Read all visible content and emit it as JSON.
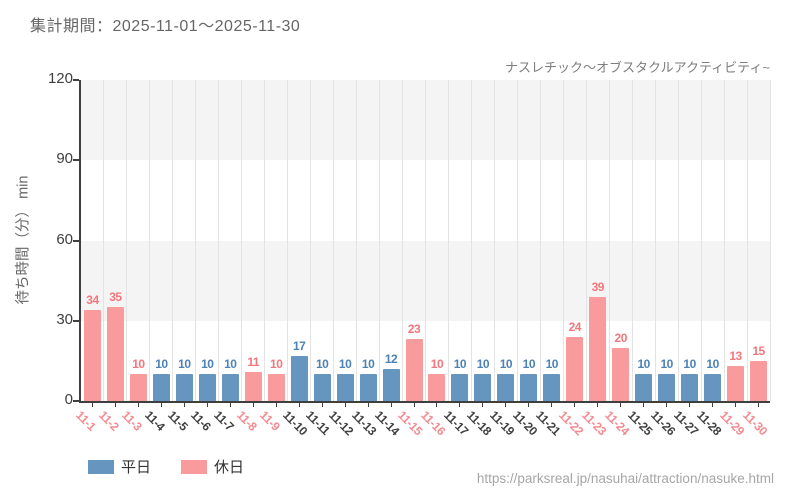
{
  "header": {
    "period_label": "集計期間：2025-11-01～2025-11-30"
  },
  "footer": {
    "source_url": "https://parksreal.jp/nasuhai/attraction/nasuke.html"
  },
  "legend": {
    "weekday_label": "平日",
    "holiday_label": "休日"
  },
  "chart_data": {
    "type": "bar",
    "title": "ナスレチック～オブスタクルアクティビティ~",
    "ylabel": "待ち時間（分） min",
    "ylim": [
      0,
      120
    ],
    "yticks": [
      0,
      30,
      60,
      90,
      120
    ],
    "grid": "vertical-gridlines-and-horizontal-bands",
    "legend_position": "bottom-left",
    "series_styles": {
      "weekday": {
        "name": "平日",
        "bar_color": "#6695bf",
        "value_label_color": "#4d82b4",
        "tick_label_color": "#404040"
      },
      "holiday": {
        "name": "休日",
        "bar_color": "#f99b9d",
        "value_label_color": "#f4767c",
        "tick_label_color": "#f5898f"
      }
    },
    "colors": {
      "band_gray": "#f4f4f4",
      "band_white": "#ffffff",
      "gridline": "#e3e3e3",
      "axis": "#3f3f3f",
      "ytick_label": "#3f3f3f"
    },
    "points": [
      {
        "date": "11-1",
        "value": 34,
        "series": "holiday"
      },
      {
        "date": "11-2",
        "value": 35,
        "series": "holiday"
      },
      {
        "date": "11-3",
        "value": 10,
        "series": "holiday"
      },
      {
        "date": "11-4",
        "value": 10,
        "series": "weekday"
      },
      {
        "date": "11-5",
        "value": 10,
        "series": "weekday"
      },
      {
        "date": "11-6",
        "value": 10,
        "series": "weekday"
      },
      {
        "date": "11-7",
        "value": 10,
        "series": "weekday"
      },
      {
        "date": "11-8",
        "value": 11,
        "series": "holiday"
      },
      {
        "date": "11-9",
        "value": 10,
        "series": "holiday"
      },
      {
        "date": "11-10",
        "value": 17,
        "series": "weekday"
      },
      {
        "date": "11-11",
        "value": 10,
        "series": "weekday"
      },
      {
        "date": "11-12",
        "value": 10,
        "series": "weekday"
      },
      {
        "date": "11-13",
        "value": 10,
        "series": "weekday"
      },
      {
        "date": "11-14",
        "value": 12,
        "series": "weekday"
      },
      {
        "date": "11-15",
        "value": 23,
        "series": "holiday"
      },
      {
        "date": "11-16",
        "value": 10,
        "series": "holiday"
      },
      {
        "date": "11-17",
        "value": 10,
        "series": "weekday"
      },
      {
        "date": "11-18",
        "value": 10,
        "series": "weekday"
      },
      {
        "date": "11-19",
        "value": 10,
        "series": "weekday"
      },
      {
        "date": "11-20",
        "value": 10,
        "series": "weekday"
      },
      {
        "date": "11-21",
        "value": 10,
        "series": "weekday"
      },
      {
        "date": "11-22",
        "value": 24,
        "series": "holiday"
      },
      {
        "date": "11-23",
        "value": 39,
        "series": "holiday"
      },
      {
        "date": "11-24",
        "value": 20,
        "series": "holiday"
      },
      {
        "date": "11-25",
        "value": 10,
        "series": "weekday"
      },
      {
        "date": "11-26",
        "value": 10,
        "series": "weekday"
      },
      {
        "date": "11-27",
        "value": 10,
        "series": "weekday"
      },
      {
        "date": "11-28",
        "value": 10,
        "series": "weekday"
      },
      {
        "date": "11-29",
        "value": 13,
        "series": "holiday"
      },
      {
        "date": "11-30",
        "value": 15,
        "series": "holiday"
      }
    ]
  }
}
